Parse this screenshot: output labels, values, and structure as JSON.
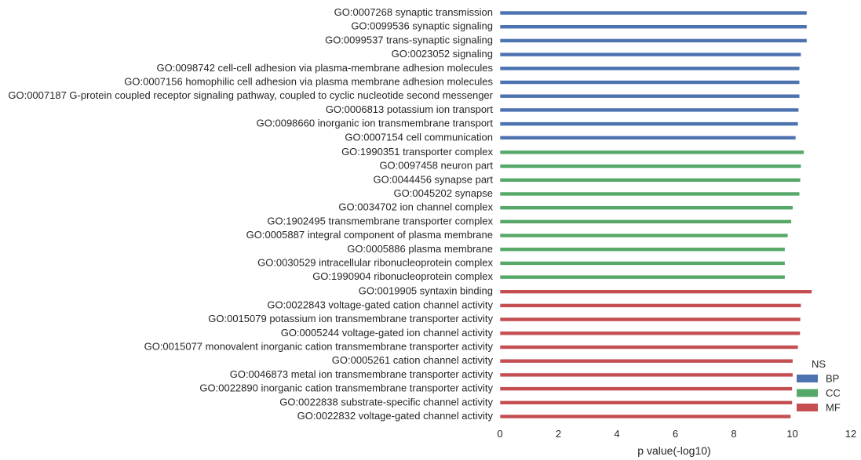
{
  "chart_data": {
    "type": "bar",
    "orientation": "horizontal",
    "xlabel": "p value(-log10)",
    "ylabel": "",
    "xlim": [
      0,
      12
    ],
    "xticks": [
      "0",
      "2",
      "4",
      "6",
      "8",
      "10",
      "12"
    ],
    "grid": false,
    "legend_placement": "bottom-right",
    "legend": {
      "title": "NS",
      "entries": [
        {
          "label": "BP",
          "color": "#4c72b0"
        },
        {
          "label": "CC",
          "color": "#55a868"
        },
        {
          "label": "MF",
          "color": "#c44e52"
        }
      ]
    },
    "series": [
      {
        "name": "BP",
        "color": "#4c72b0",
        "categories": [
          "GO:0007268 synaptic transmission",
          "GO:0099536 synaptic signaling",
          "GO:0099537 trans-synaptic signaling",
          "GO:0023052 signaling",
          "GO:0098742 cell-cell adhesion via plasma-membrane adhesion molecules",
          "GO:0007156 homophilic cell adhesion via plasma membrane adhesion molecules",
          "GO:0007187 G-protein coupled receptor signaling pathway, coupled to cyclic nucleotide second messenger",
          "GO:0006813 potassium ion transport",
          "GO:0098660 inorganic ion transmembrane transport",
          "GO:0007154 cell communication"
        ],
        "values": [
          10.5,
          10.5,
          10.5,
          10.3,
          10.25,
          10.25,
          10.25,
          10.22,
          10.2,
          10.12
        ]
      },
      {
        "name": "CC",
        "color": "#55a868",
        "categories": [
          "GO:1990351 transporter complex",
          "GO:0097458 neuron part",
          "GO:0044456 synapse part",
          "GO:0045202 synapse",
          "GO:0034702 ion channel complex",
          "GO:1902495 transmembrane transporter complex",
          "GO:0005887 integral component of plasma membrane",
          "GO:0005886 plasma membrane",
          "GO:0030529 intracellular ribonucleoprotein complex",
          "GO:1990904 ribonucleoprotein complex"
        ],
        "values": [
          10.4,
          10.3,
          10.28,
          10.25,
          10.02,
          9.97,
          9.85,
          9.75,
          9.75,
          9.75
        ]
      },
      {
        "name": "MF",
        "color": "#c44e52",
        "categories": [
          "GO:0019905 syntaxin binding",
          "GO:0022843 voltage-gated cation channel activity",
          "GO:0015079 potassium ion transmembrane transporter activity",
          "GO:0005244 voltage-gated ion channel activity",
          "GO:0015077 monovalent inorganic cation transmembrane transporter activity",
          "GO:0005261 cation channel activity",
          "GO:0046873 metal ion transmembrane transporter activity",
          "GO:0022890 inorganic cation transmembrane transporter activity",
          "GO:0022838 substrate-specific channel activity",
          "GO:0022832 voltage-gated channel activity"
        ],
        "values": [
          10.67,
          10.3,
          10.28,
          10.27,
          10.2,
          10.02,
          10.02,
          10.0,
          10.0,
          9.95
        ]
      }
    ]
  }
}
